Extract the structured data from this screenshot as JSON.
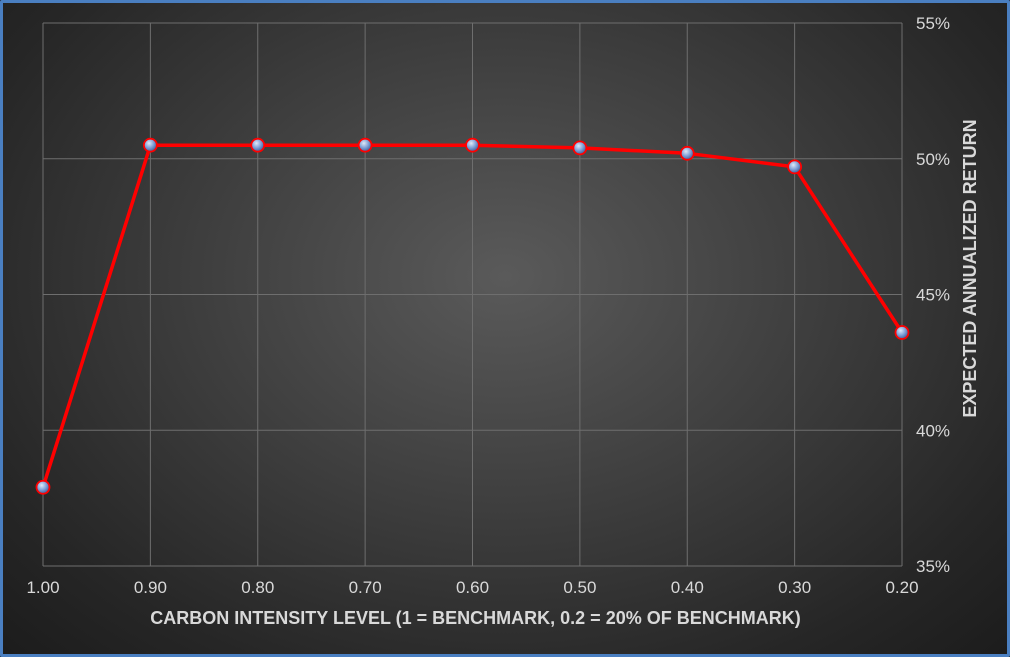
{
  "chart_data": {
    "type": "line",
    "title": "",
    "xlabel": "CARBON INTENSITY  LEVEL (1 = BENCHMARK, 0.2 = 20% OF BENCHMARK)",
    "ylabel": "EXPECTED ANNUALIZED RETURN",
    "x": [
      1.0,
      0.9,
      0.8,
      0.7,
      0.6,
      0.5,
      0.4,
      0.3,
      0.2
    ],
    "x_tick_labels": [
      "1.00",
      "0.90",
      "0.80",
      "0.70",
      "0.60",
      "0.50",
      "0.40",
      "0.30",
      "0.20"
    ],
    "xlim": [
      1.0,
      0.2
    ],
    "ylim": [
      0.35,
      0.55
    ],
    "y_ticks": [
      0.35,
      0.4,
      0.45,
      0.5,
      0.55
    ],
    "y_tick_labels": [
      "35%",
      "40%",
      "45%",
      "50%",
      "55%"
    ],
    "y_axis_position": "right",
    "grid": true,
    "legend": "none",
    "series": [
      {
        "name": "",
        "values": [
          0.379,
          0.505,
          0.505,
          0.505,
          0.505,
          0.504,
          0.502,
          0.497,
          0.436
        ],
        "color": "#ff0000",
        "marker_color": "#8fb0e0"
      }
    ]
  }
}
